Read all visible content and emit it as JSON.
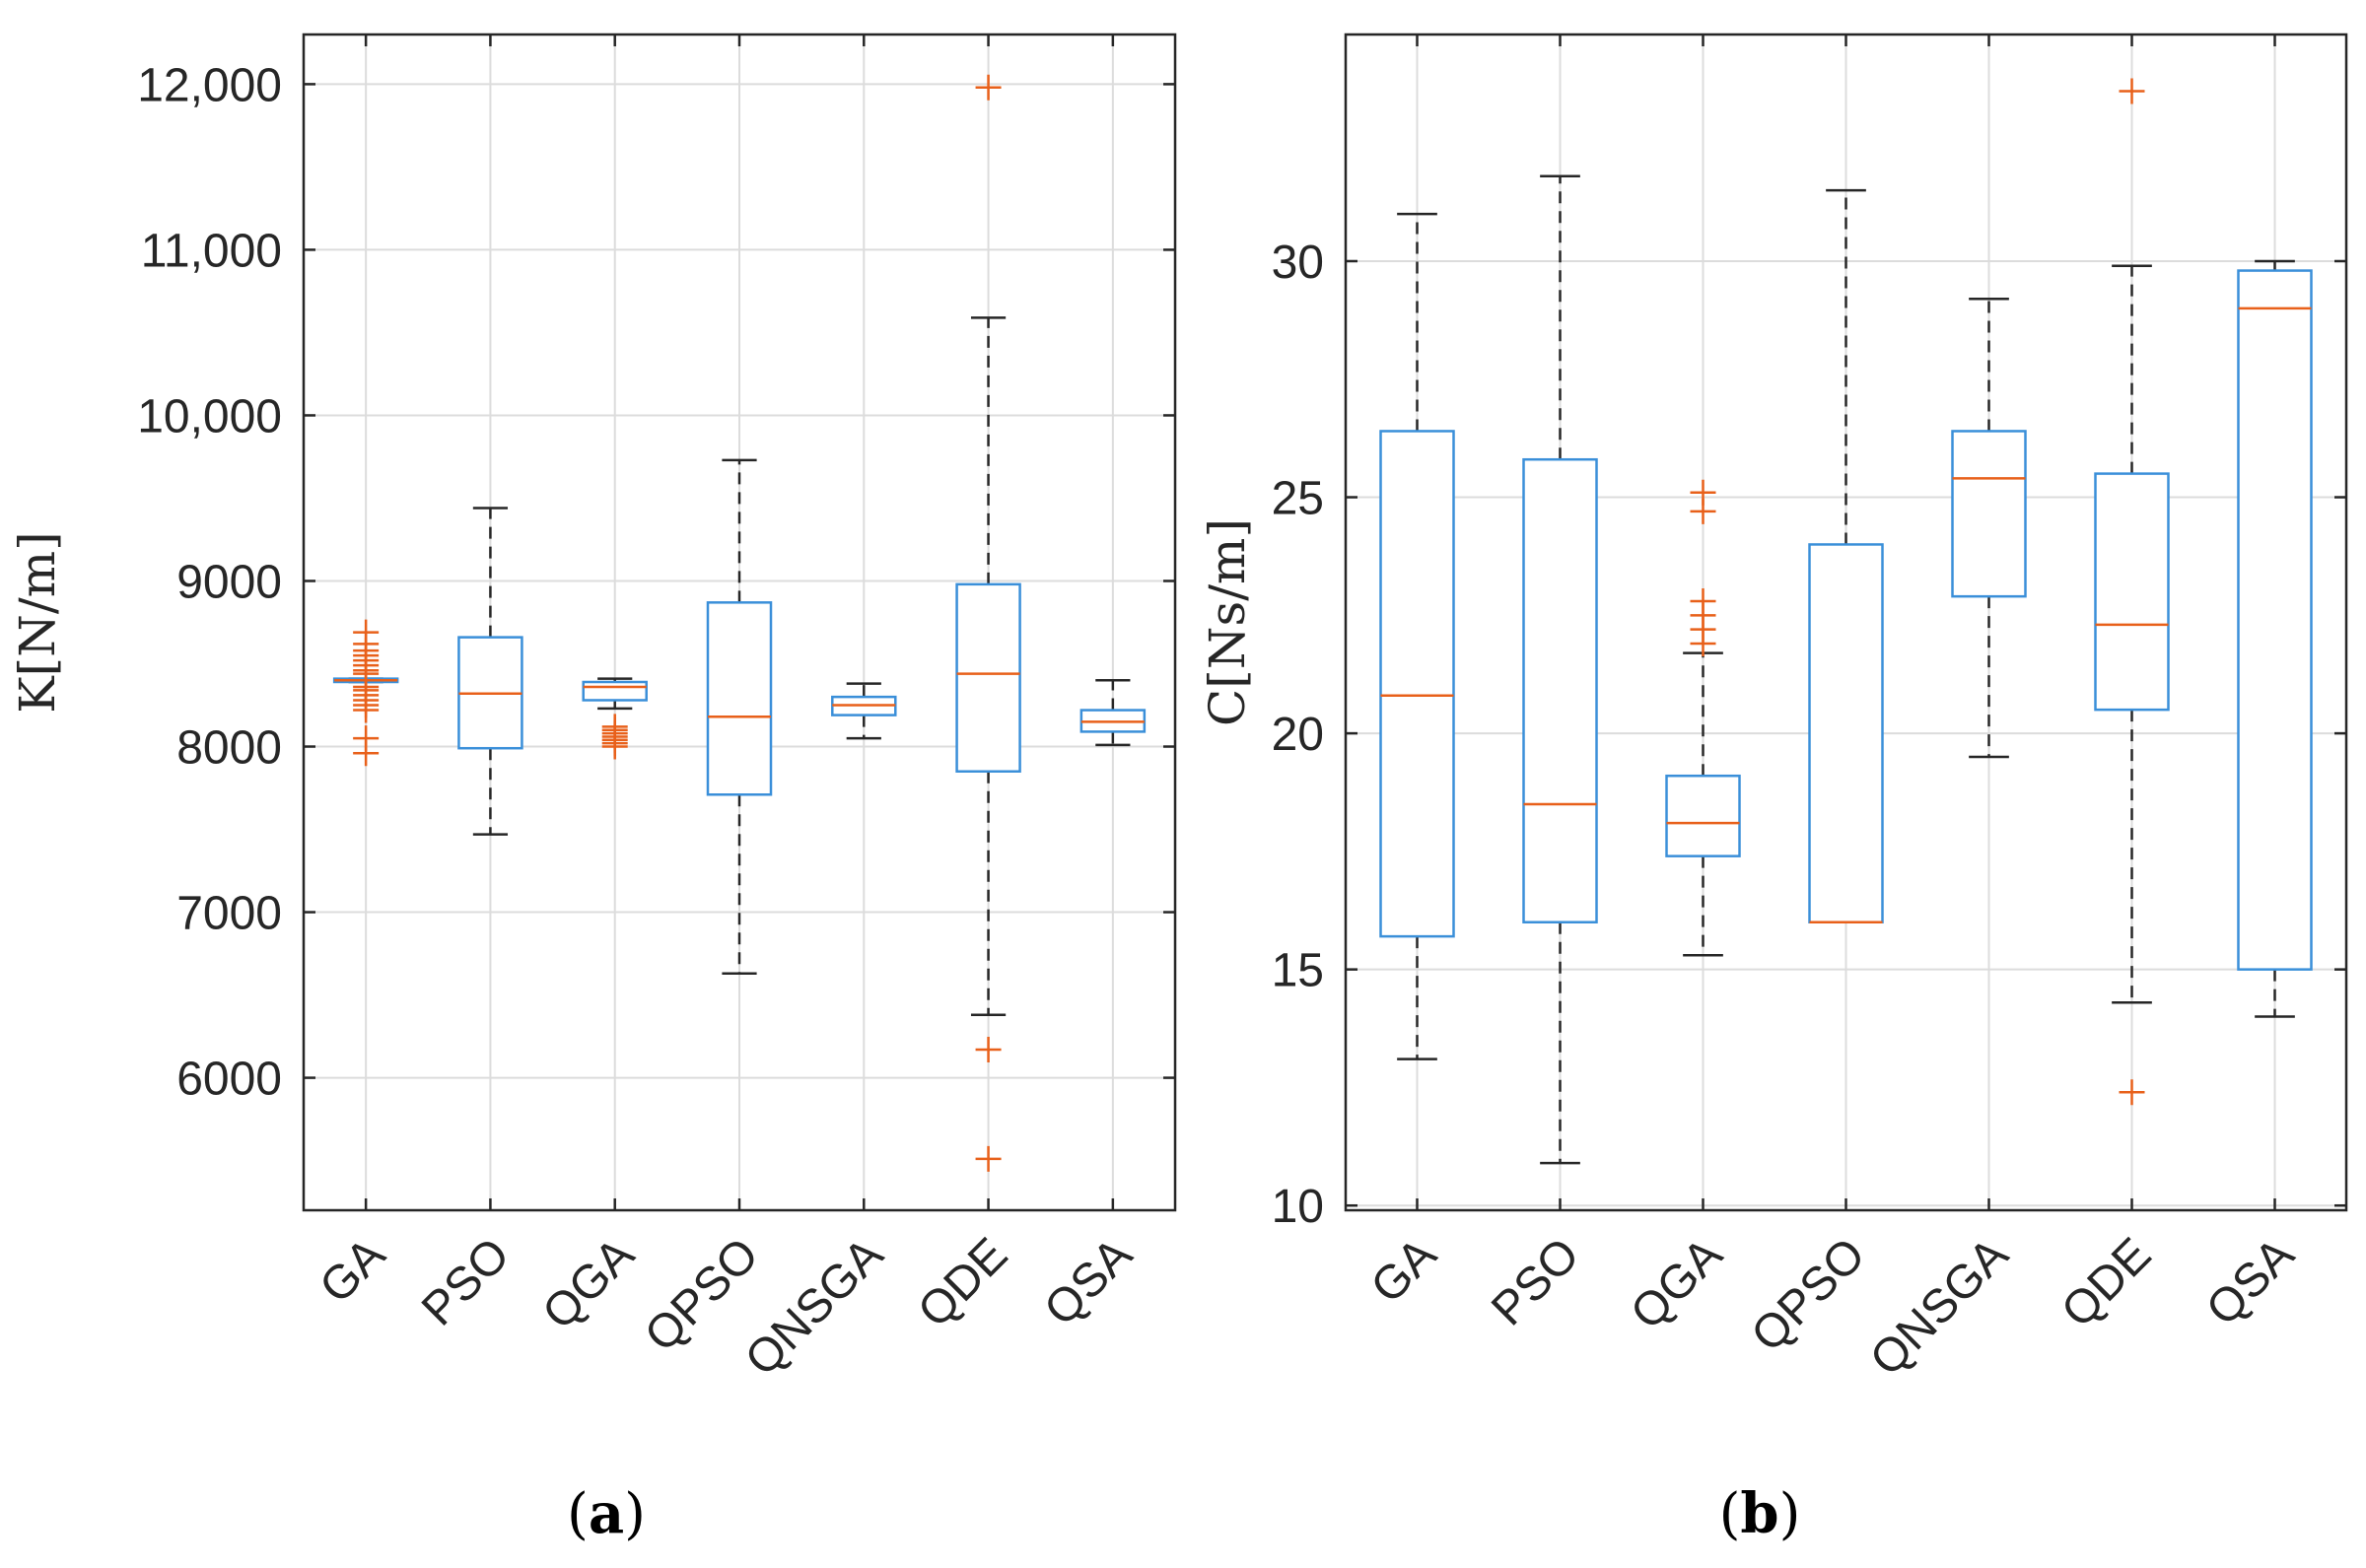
{
  "figure": {
    "caption_a": {
      "open": "(",
      "letter": "a",
      "close": ")"
    },
    "caption_b": {
      "open": "(",
      "letter": "b",
      "close": ")"
    }
  },
  "colors": {
    "box": "#3a8fd9",
    "median": "#e8601a",
    "outlier": "#e8601a",
    "whisker": "#262626",
    "grid": "#dcdcdc",
    "axis": "#262626"
  },
  "chart_data": [
    {
      "type": "box",
      "panel": "a",
      "ylabel": "K[N/m]",
      "ylim": [
        5200,
        12300
      ],
      "yticks": [
        6000,
        7000,
        8000,
        9000,
        10000,
        11000,
        12000
      ],
      "ytick_labels": [
        "6000",
        "7000",
        "8000",
        "9000",
        "10,000",
        "11,000",
        "12,000"
      ],
      "grid": true,
      "categories": [
        "GA",
        "PSO",
        "QGA",
        "QPSO",
        "QNSGA",
        "QDE",
        "QSA"
      ],
      "boxes": [
        {
          "name": "GA",
          "whisker_low": 8390,
          "q1": 8390,
          "median": 8400,
          "q3": 8410,
          "whisker_high": 8410,
          "outliers": [
            8690,
            8620,
            8580,
            8550,
            8520,
            8490,
            8460,
            8440,
            8360,
            8340,
            8310,
            8280,
            8250,
            8220,
            8050,
            7960
          ]
        },
        {
          "name": "PSO",
          "whisker_low": 7470,
          "q1": 7990,
          "median": 8320,
          "q3": 8660,
          "whisker_high": 9440,
          "outliers": []
        },
        {
          "name": "QGA",
          "whisker_low": 8230,
          "q1": 8280,
          "median": 8360,
          "q3": 8390,
          "whisker_high": 8410,
          "outliers": [
            8120,
            8100,
            8080,
            8060,
            8040,
            8020,
            8000
          ]
        },
        {
          "name": "QPSO",
          "whisker_low": 6630,
          "q1": 7710,
          "median": 8180,
          "q3": 8870,
          "whisker_high": 9730,
          "outliers": []
        },
        {
          "name": "QNSGA",
          "whisker_low": 8050,
          "q1": 8190,
          "median": 8250,
          "q3": 8300,
          "whisker_high": 8380,
          "outliers": []
        },
        {
          "name": "QDE",
          "whisker_low": 6380,
          "q1": 7850,
          "median": 8440,
          "q3": 8980,
          "whisker_high": 10590,
          "outliers": [
            11980,
            6170,
            5510
          ]
        },
        {
          "name": "QSA",
          "whisker_low": 8010,
          "q1": 8090,
          "median": 8150,
          "q3": 8220,
          "whisker_high": 8400,
          "outliers": []
        }
      ]
    },
    {
      "type": "box",
      "panel": "b",
      "ylabel": "C[Ns/m]",
      "ylim": [
        9.9,
        34.8
      ],
      "yticks": [
        10,
        15,
        20,
        25,
        30
      ],
      "ytick_labels": [
        "10",
        "15",
        "20",
        "25",
        "30"
      ],
      "grid": true,
      "categories": [
        "GA",
        "PSO",
        "QGA",
        "QPSO",
        "QNSGA",
        "QDE",
        "QSA"
      ],
      "boxes": [
        {
          "name": "GA",
          "whisker_low": 13.1,
          "q1": 15.7,
          "median": 20.8,
          "q3": 26.4,
          "whisker_high": 31.0,
          "outliers": []
        },
        {
          "name": "PSO",
          "whisker_low": 10.9,
          "q1": 16.0,
          "median": 18.5,
          "q3": 25.8,
          "whisker_high": 31.8,
          "outliers": []
        },
        {
          "name": "QGA",
          "whisker_low": 15.3,
          "q1": 17.4,
          "median": 18.1,
          "q3": 19.1,
          "whisker_high": 21.7,
          "outliers": [
            25.1,
            24.7,
            22.8,
            22.5,
            22.2,
            21.9
          ]
        },
        {
          "name": "QPSO",
          "whisker_low": 16.0,
          "q1": 16.0,
          "median": 16.0,
          "q3": 24.0,
          "whisker_high": 31.5,
          "outliers": []
        },
        {
          "name": "QNSGA",
          "whisker_low": 19.5,
          "q1": 22.9,
          "median": 25.4,
          "q3": 26.4,
          "whisker_high": 29.2,
          "outliers": []
        },
        {
          "name": "QDE",
          "whisker_low": 14.3,
          "q1": 20.5,
          "median": 22.3,
          "q3": 25.5,
          "whisker_high": 29.9,
          "outliers": [
            33.6,
            12.4
          ]
        },
        {
          "name": "QSA",
          "whisker_low": 14.0,
          "q1": 15.0,
          "median": 29.0,
          "q3": 29.8,
          "whisker_high": 30.0,
          "outliers": []
        }
      ]
    }
  ]
}
